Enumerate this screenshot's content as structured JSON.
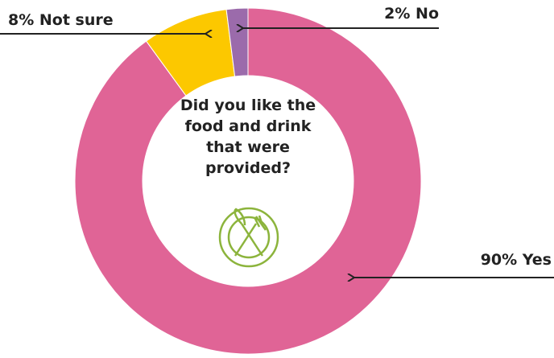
{
  "chart_data": {
    "type": "donut",
    "title": "Did you like the food and drink that were provided?",
    "values": [
      90,
      8,
      2
    ],
    "value_labels": [
      "90% Yes",
      "8% Not sure",
      "2% No"
    ],
    "colors": [
      "#e06496",
      "#fcc800",
      "#9b6bab"
    ]
  }
}
